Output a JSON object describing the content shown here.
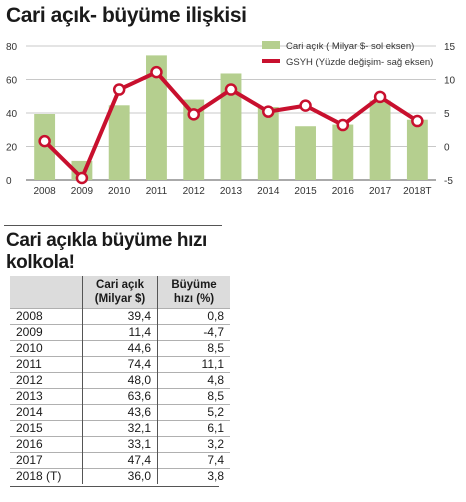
{
  "chart_title": "Cari açık- büyüme ilişkisi",
  "chart_data": {
    "type": "bar",
    "categories": [
      "2008",
      "2009",
      "2010",
      "2011",
      "2012",
      "2013",
      "2014",
      "2015",
      "2016",
      "2017",
      "2018T"
    ],
    "series": [
      {
        "name": "Cari açık ( Milyar $- sol eksen)",
        "type": "bar",
        "axis": "left",
        "color": "#b5cf8f",
        "values": [
          39.4,
          11.4,
          44.6,
          74.4,
          48.0,
          63.6,
          43.6,
          32.1,
          33.1,
          47.4,
          36.0
        ]
      },
      {
        "name": "GSYH (Yüzde değişim- sağ eksen)",
        "type": "line",
        "axis": "right",
        "color": "#c8102e",
        "values": [
          0.8,
          -4.7,
          8.5,
          11.1,
          4.8,
          8.5,
          5.2,
          6.1,
          3.2,
          7.4,
          3.8
        ]
      }
    ],
    "y_left": {
      "ylim": [
        0,
        80
      ],
      "ticks": [
        "0",
        "20",
        "40",
        "60",
        "80"
      ]
    },
    "y_right": {
      "ylim": [
        -5,
        15
      ],
      "ticks": [
        "-5",
        "0",
        "5",
        "10",
        "15"
      ]
    },
    "grid": true,
    "legend": "top-right"
  },
  "table_title": "Cari açıkla büyüme hızı kolkola!",
  "table": {
    "headers": [
      "",
      "Cari açık (Milyar $)",
      "Büyüme hızı (%)"
    ],
    "rows": [
      [
        "2008",
        "39,4",
        "0,8"
      ],
      [
        "2009",
        "11,4",
        "-4,7"
      ],
      [
        "2010",
        "44,6",
        "8,5"
      ],
      [
        "2011",
        "74,4",
        "11,1"
      ],
      [
        "2012",
        "48,0",
        "4,8"
      ],
      [
        "2013",
        "63,6",
        "8,5"
      ],
      [
        "2014",
        "43,6",
        "5,2"
      ],
      [
        "2015",
        "32,1",
        "6,1"
      ],
      [
        "2016",
        "33,1",
        "3,2"
      ],
      [
        "2017",
        "47,4",
        "7,4"
      ],
      [
        "2018 (T)",
        "36,0",
        "3,8"
      ]
    ]
  }
}
